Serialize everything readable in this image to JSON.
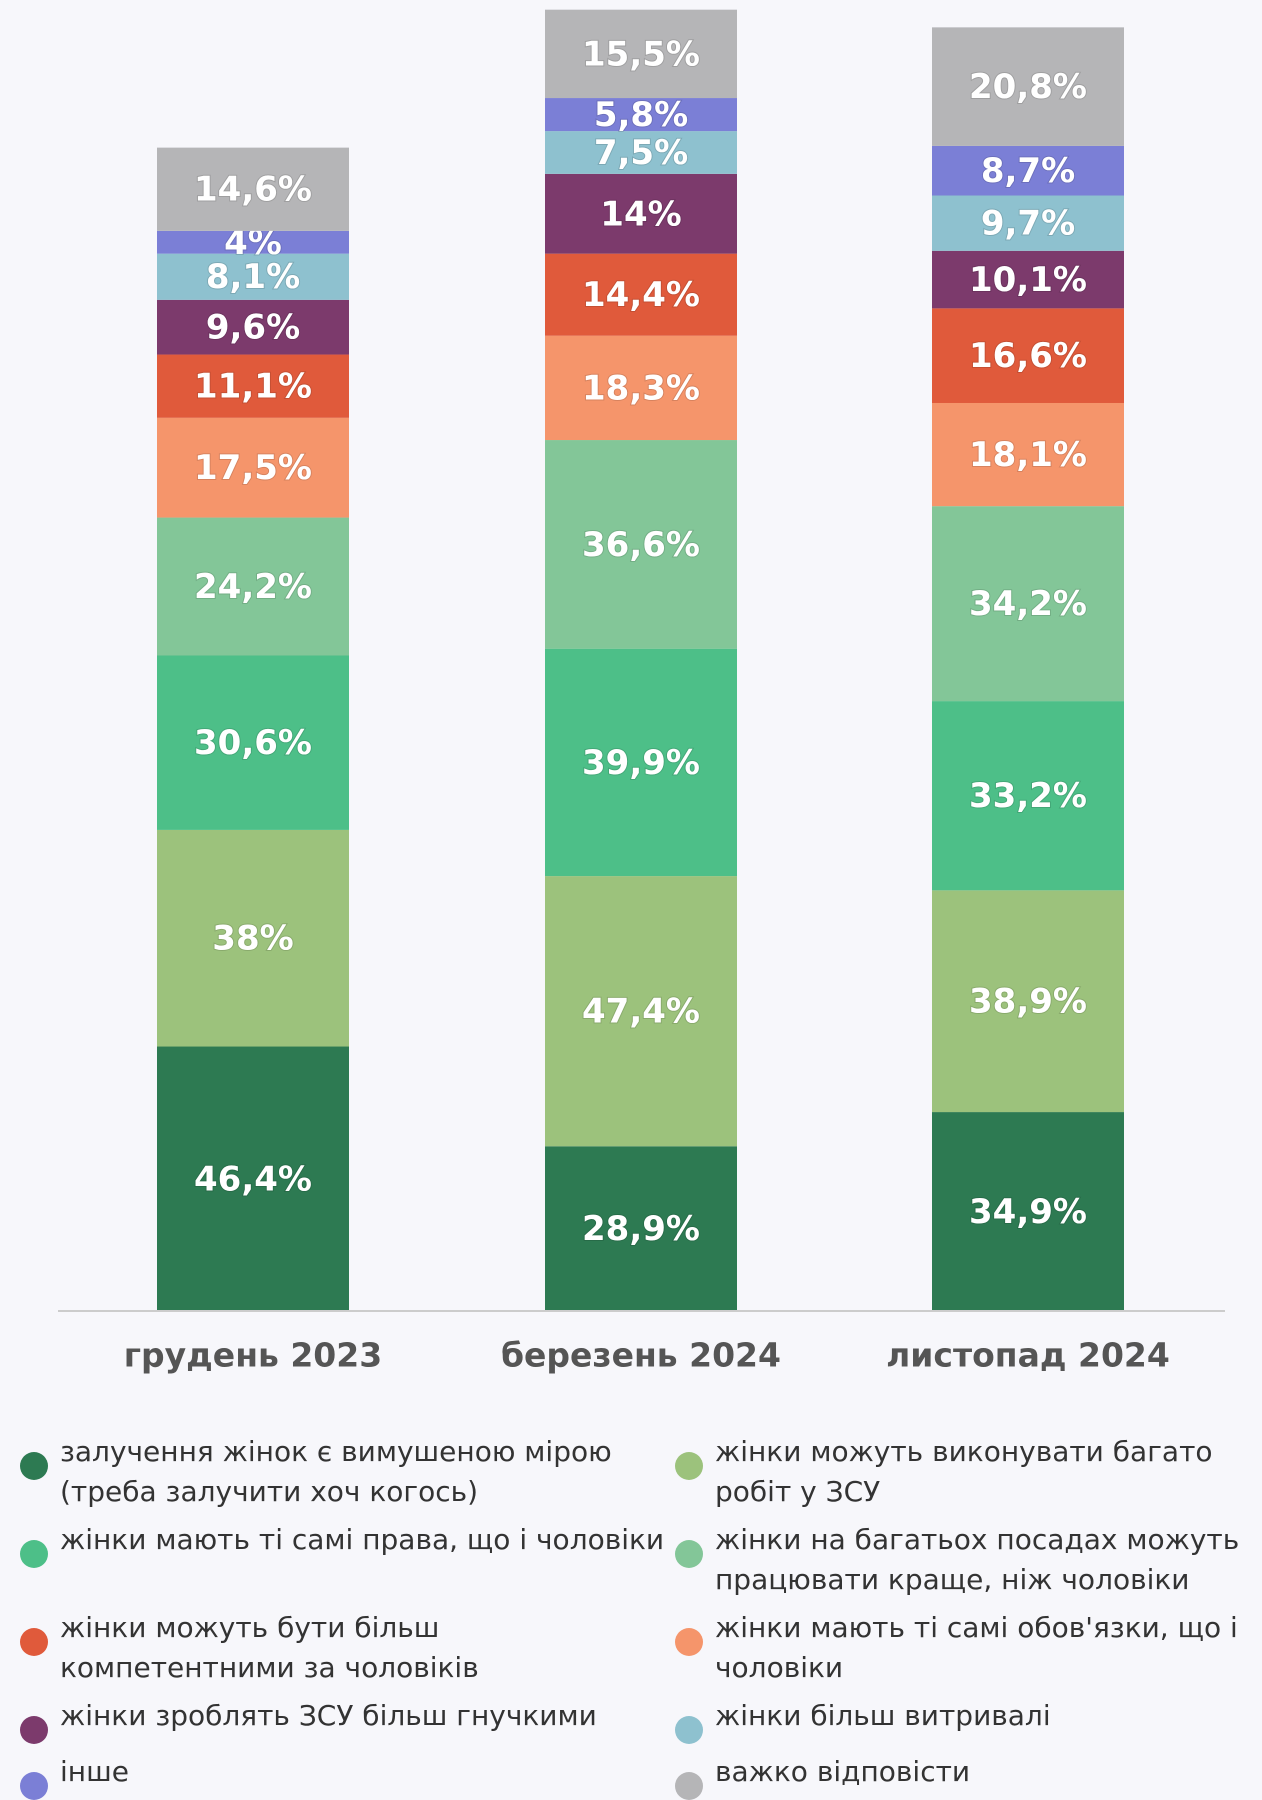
{
  "chart_data": {
    "type": "stacked_bar",
    "categories": [
      "грудень 2023",
      "березень 2024",
      "листопад 2024"
    ],
    "ylim": [
      0,
      230
    ],
    "series": [
      {
        "name": "залучення жінок є вимушеною мірою (треба залучити хоч когось)",
        "color": "#2d7a52",
        "values": [
          46.4,
          28.9,
          34.9
        ],
        "value_labels": [
          "46,4%",
          "28,9%",
          "34,9%"
        ]
      },
      {
        "name": "жінки можуть виконувати багато робіт у ЗСУ",
        "color": "#9cc27c",
        "values": [
          38,
          47.4,
          38.9
        ],
        "value_labels": [
          "38%",
          "47,4%",
          "38,9%"
        ]
      },
      {
        "name": "жінки мають ті самі права, що і чоловіки",
        "color": "#4dbf88",
        "values": [
          30.6,
          39.9,
          33.2
        ],
        "value_labels": [
          "30,6%",
          "39,9%",
          "33,2%"
        ]
      },
      {
        "name": "жінки на багатьох посадах можуть працювати краще, ніж чоловіки",
        "color": "#83c698",
        "values": [
          24.2,
          36.6,
          34.2
        ],
        "value_labels": [
          "24,2%",
          "36,6%",
          "34,2%"
        ]
      },
      {
        "name": "жінки мають ті самі обов'язки, що і чоловіки",
        "color": "#f5956b",
        "values": [
          17.5,
          18.3,
          18.1
        ],
        "value_labels": [
          "17,5%",
          "18,3%",
          "18,1%"
        ]
      },
      {
        "name": "жінки можуть бути більш компетентними за чоловіків",
        "color": "#e05a3b",
        "values": [
          11.1,
          14.4,
          16.6
        ],
        "value_labels": [
          "11,1%",
          "14,4%",
          "16,6%"
        ]
      },
      {
        "name": "жінки зроблять ЗСУ більш гнучкими",
        "color": "#7c3a6c",
        "values": [
          9.6,
          14,
          10.1
        ],
        "value_labels": [
          "9,6%",
          "14%",
          "10,1%"
        ]
      },
      {
        "name": "жінки більш витривалі",
        "color": "#8ec1cf",
        "values": [
          8.1,
          7.5,
          9.7
        ],
        "value_labels": [
          "8,1%",
          "7,5%",
          "9,7%"
        ]
      },
      {
        "name": "інше",
        "color": "#7b7fd6",
        "values": [
          4,
          5.8,
          8.7
        ],
        "value_labels": [
          "4%",
          "5,8%",
          "8,7%"
        ]
      },
      {
        "name": "важко відповісти",
        "color": "#b5b5b7",
        "values": [
          14.6,
          15.5,
          20.8
        ],
        "value_labels": [
          "14,6%",
          "15,5%",
          "20,8%"
        ]
      }
    ]
  }
}
